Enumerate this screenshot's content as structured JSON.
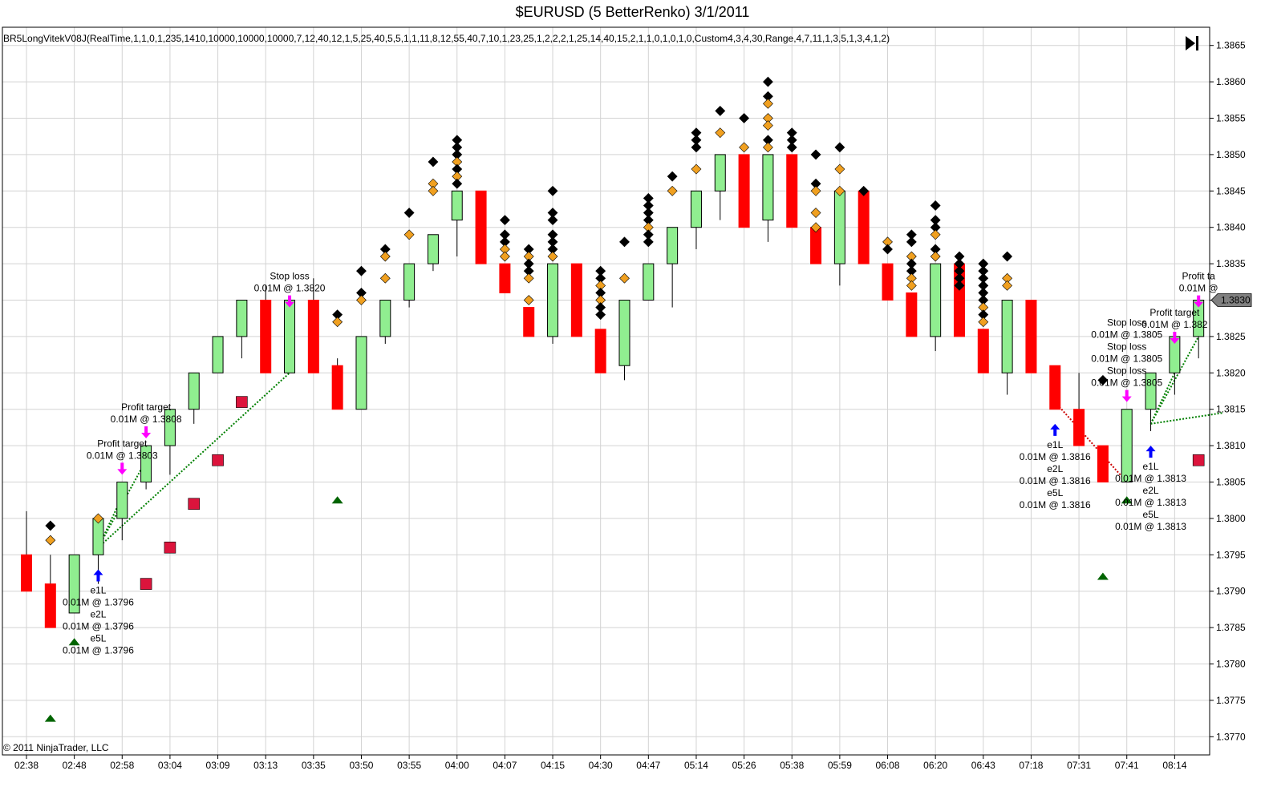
{
  "window": {
    "title": "$EURUSD (5 BetterRenko)  3/1/2011"
  },
  "indicator_label": "BR5LongVitekV08J(RealTime,1,1,0,1,235,1410,10000,10000,10000,7,12,40,12,1,5,25,40,5,5,1,1,11,8,12,55,40,7,10,1,23,25,1,2,2,2,1,25,14,40,15,2,1,1,0,1,0,1,0,Custom4,3,4,30,Range,4,7,11,1,3,5,1,3,4,1,2)",
  "copyright": "© 2011 NinjaTrader, LLC",
  "toolbar": {
    "goto_end_icon": "skip-to-end-icon"
  },
  "colors": {
    "up": "#90ee90",
    "down": "#ff0000",
    "diamond_black": "#000000",
    "diamond_orange": "#f0a020",
    "square": "#dc143c",
    "triangle": "#006400",
    "entry_arrow": "#0000ff",
    "exit_arrow": "#ff00ff",
    "trade_line": "#008000",
    "loss_line": "#cc0000",
    "price_marker": "#808080"
  },
  "chart_data": {
    "type": "candlestick",
    "title": "$EURUSD (5 BetterRenko)  3/1/2011",
    "y_range": [
      1.37675,
      1.38675
    ],
    "y_ticks": [
      "1.3770",
      "1.3775",
      "1.3780",
      "1.3785",
      "1.3790",
      "1.3795",
      "1.3800",
      "1.3805",
      "1.3810",
      "1.3815",
      "1.3820",
      "1.3825",
      "1.3830",
      "1.3835",
      "1.3840",
      "1.3845",
      "1.3850",
      "1.3855",
      "1.3860",
      "1.3865"
    ],
    "x_ticks": [
      "02:38",
      "02:48",
      "02:58",
      "03:04",
      "03:09",
      "03:13",
      "03:35",
      "03:50",
      "03:55",
      "04:00",
      "04:07",
      "04:15",
      "04:30",
      "04:47",
      "05:14",
      "05:26",
      "05:38",
      "05:59",
      "06:08",
      "06:20",
      "06:43",
      "07:18",
      "07:31",
      "07:41",
      "08:14"
    ],
    "bars": [
      {
        "o": 1.3795,
        "h": 1.3801,
        "l": 1.379,
        "c": 1.379
      },
      {
        "o": 1.3791,
        "h": 1.3795,
        "l": 1.3785,
        "c": 1.3785
      },
      {
        "o": 1.3787,
        "h": 1.3795,
        "l": 1.3787,
        "c": 1.3795
      },
      {
        "o": 1.3795,
        "h": 1.38,
        "l": 1.3791,
        "c": 1.38
      },
      {
        "o": 1.38,
        "h": 1.3805,
        "l": 1.3797,
        "c": 1.3805
      },
      {
        "o": 1.3805,
        "h": 1.381,
        "l": 1.3804,
        "c": 1.381
      },
      {
        "o": 1.381,
        "h": 1.3815,
        "l": 1.3806,
        "c": 1.3815
      },
      {
        "o": 1.3815,
        "h": 1.382,
        "l": 1.3813,
        "c": 1.382
      },
      {
        "o": 1.382,
        "h": 1.3825,
        "l": 1.382,
        "c": 1.3825
      },
      {
        "o": 1.3825,
        "h": 1.383,
        "l": 1.3822,
        "c": 1.383
      },
      {
        "o": 1.383,
        "h": 1.3832,
        "l": 1.382,
        "c": 1.382
      },
      {
        "o": 1.382,
        "h": 1.383,
        "l": 1.382,
        "c": 1.383
      },
      {
        "o": 1.383,
        "h": 1.3833,
        "l": 1.382,
        "c": 1.382
      },
      {
        "o": 1.3821,
        "h": 1.3822,
        "l": 1.3815,
        "c": 1.3815
      },
      {
        "o": 1.3815,
        "h": 1.3825,
        "l": 1.3815,
        "c": 1.3825
      },
      {
        "o": 1.3825,
        "h": 1.383,
        "l": 1.3824,
        "c": 1.383
      },
      {
        "o": 1.383,
        "h": 1.3835,
        "l": 1.3829,
        "c": 1.3835
      },
      {
        "o": 1.3835,
        "h": 1.3839,
        "l": 1.3834,
        "c": 1.3839
      },
      {
        "o": 1.3841,
        "h": 1.3845,
        "l": 1.3836,
        "c": 1.3845
      },
      {
        "o": 1.3845,
        "h": 1.3845,
        "l": 1.3835,
        "c": 1.3835
      },
      {
        "o": 1.3835,
        "h": 1.3835,
        "l": 1.3831,
        "c": 1.3831
      },
      {
        "o": 1.3829,
        "h": 1.3829,
        "l": 1.3825,
        "c": 1.3825
      },
      {
        "o": 1.3825,
        "h": 1.3835,
        "l": 1.3824,
        "c": 1.3835
      },
      {
        "o": 1.3835,
        "h": 1.3835,
        "l": 1.3825,
        "c": 1.3825
      },
      {
        "o": 1.3826,
        "h": 1.3826,
        "l": 1.382,
        "c": 1.382
      },
      {
        "o": 1.3821,
        "h": 1.383,
        "l": 1.3819,
        "c": 1.383
      },
      {
        "o": 1.383,
        "h": 1.3835,
        "l": 1.383,
        "c": 1.3835
      },
      {
        "o": 1.3835,
        "h": 1.384,
        "l": 1.3829,
        "c": 1.384
      },
      {
        "o": 1.384,
        "h": 1.3845,
        "l": 1.3837,
        "c": 1.3845
      },
      {
        "o": 1.3845,
        "h": 1.385,
        "l": 1.3841,
        "c": 1.385
      },
      {
        "o": 1.385,
        "h": 1.385,
        "l": 1.384,
        "c": 1.384
      },
      {
        "o": 1.3841,
        "h": 1.385,
        "l": 1.3838,
        "c": 1.385
      },
      {
        "o": 1.385,
        "h": 1.385,
        "l": 1.384,
        "c": 1.384
      },
      {
        "o": 1.384,
        "h": 1.384,
        "l": 1.3835,
        "c": 1.3835
      },
      {
        "o": 1.3835,
        "h": 1.3845,
        "l": 1.3832,
        "c": 1.3845
      },
      {
        "o": 1.3845,
        "h": 1.3845,
        "l": 1.3835,
        "c": 1.3835
      },
      {
        "o": 1.3835,
        "h": 1.3835,
        "l": 1.383,
        "c": 1.383
      },
      {
        "o": 1.3831,
        "h": 1.3831,
        "l": 1.3825,
        "c": 1.3825
      },
      {
        "o": 1.3825,
        "h": 1.3835,
        "l": 1.3823,
        "c": 1.3835
      },
      {
        "o": 1.3835,
        "h": 1.3835,
        "l": 1.3825,
        "c": 1.3825
      },
      {
        "o": 1.3826,
        "h": 1.3826,
        "l": 1.382,
        "c": 1.382
      },
      {
        "o": 1.382,
        "h": 1.383,
        "l": 1.3817,
        "c": 1.383
      },
      {
        "o": 1.383,
        "h": 1.383,
        "l": 1.382,
        "c": 1.382
      },
      {
        "o": 1.3821,
        "h": 1.3821,
        "l": 1.3815,
        "c": 1.3815
      },
      {
        "o": 1.3815,
        "h": 1.382,
        "l": 1.381,
        "c": 1.381
      },
      {
        "o": 1.381,
        "h": 1.381,
        "l": 1.3805,
        "c": 1.3805
      },
      {
        "o": 1.3805,
        "h": 1.3815,
        "l": 1.3805,
        "c": 1.3815
      },
      {
        "o": 1.3815,
        "h": 1.382,
        "l": 1.3812,
        "c": 1.382
      },
      {
        "o": 1.382,
        "h": 1.3825,
        "l": 1.3817,
        "c": 1.3825
      },
      {
        "o": 1.3825,
        "h": 1.383,
        "l": 1.3822,
        "c": 1.383
      }
    ],
    "diamonds": [
      {
        "i": 1,
        "y": 1.3799,
        "c": "k"
      },
      {
        "i": 1,
        "y": 1.3797,
        "c": "o"
      },
      {
        "i": 3,
        "y": 1.38,
        "c": "o"
      },
      {
        "i": 13,
        "y": 1.3828,
        "c": "k"
      },
      {
        "i": 13,
        "y": 1.3827,
        "c": "o"
      },
      {
        "i": 14,
        "y": 1.3834,
        "c": "k"
      },
      {
        "i": 14,
        "y": 1.3831,
        "c": "k"
      },
      {
        "i": 14,
        "y": 1.383,
        "c": "o"
      },
      {
        "i": 15,
        "y": 1.3837,
        "c": "k"
      },
      {
        "i": 15,
        "y": 1.3836,
        "c": "o"
      },
      {
        "i": 15,
        "y": 1.3833,
        "c": "o"
      },
      {
        "i": 16,
        "y": 1.3842,
        "c": "k"
      },
      {
        "i": 16,
        "y": 1.3839,
        "c": "o"
      },
      {
        "i": 17,
        "y": 1.3849,
        "c": "k"
      },
      {
        "i": 17,
        "y": 1.3846,
        "c": "o"
      },
      {
        "i": 17,
        "y": 1.3845,
        "c": "o"
      },
      {
        "i": 18,
        "y": 1.3852,
        "c": "k"
      },
      {
        "i": 18,
        "y": 1.3851,
        "c": "k"
      },
      {
        "i": 18,
        "y": 1.385,
        "c": "k"
      },
      {
        "i": 18,
        "y": 1.3849,
        "c": "o"
      },
      {
        "i": 18,
        "y": 1.3848,
        "c": "k"
      },
      {
        "i": 18,
        "y": 1.3847,
        "c": "o"
      },
      {
        "i": 18,
        "y": 1.3846,
        "c": "k"
      },
      {
        "i": 20,
        "y": 1.3841,
        "c": "k"
      },
      {
        "i": 20,
        "y": 1.3839,
        "c": "k"
      },
      {
        "i": 20,
        "y": 1.3838,
        "c": "k"
      },
      {
        "i": 20,
        "y": 1.3837,
        "c": "o"
      },
      {
        "i": 20,
        "y": 1.3836,
        "c": "o"
      },
      {
        "i": 21,
        "y": 1.3837,
        "c": "k"
      },
      {
        "i": 21,
        "y": 1.3836,
        "c": "o"
      },
      {
        "i": 21,
        "y": 1.3835,
        "c": "k"
      },
      {
        "i": 21,
        "y": 1.3834,
        "c": "k"
      },
      {
        "i": 21,
        "y": 1.3833,
        "c": "o"
      },
      {
        "i": 21,
        "y": 1.383,
        "c": "o"
      },
      {
        "i": 22,
        "y": 1.3845,
        "c": "k"
      },
      {
        "i": 22,
        "y": 1.3842,
        "c": "k"
      },
      {
        "i": 22,
        "y": 1.3841,
        "c": "k"
      },
      {
        "i": 22,
        "y": 1.3839,
        "c": "k"
      },
      {
        "i": 22,
        "y": 1.3838,
        "c": "k"
      },
      {
        "i": 22,
        "y": 1.3837,
        "c": "k"
      },
      {
        "i": 22,
        "y": 1.3836,
        "c": "o"
      },
      {
        "i": 24,
        "y": 1.3834,
        "c": "k"
      },
      {
        "i": 24,
        "y": 1.3833,
        "c": "k"
      },
      {
        "i": 24,
        "y": 1.3832,
        "c": "o"
      },
      {
        "i": 24,
        "y": 1.3831,
        "c": "k"
      },
      {
        "i": 24,
        "y": 1.383,
        "c": "o"
      },
      {
        "i": 24,
        "y": 1.3829,
        "c": "k"
      },
      {
        "i": 24,
        "y": 1.3828,
        "c": "k"
      },
      {
        "i": 25,
        "y": 1.3838,
        "c": "k"
      },
      {
        "i": 25,
        "y": 1.3833,
        "c": "o"
      },
      {
        "i": 26,
        "y": 1.3844,
        "c": "k"
      },
      {
        "i": 26,
        "y": 1.3843,
        "c": "k"
      },
      {
        "i": 26,
        "y": 1.3842,
        "c": "k"
      },
      {
        "i": 26,
        "y": 1.3841,
        "c": "k"
      },
      {
        "i": 26,
        "y": 1.384,
        "c": "o"
      },
      {
        "i": 26,
        "y": 1.3839,
        "c": "k"
      },
      {
        "i": 26,
        "y": 1.3838,
        "c": "k"
      },
      {
        "i": 27,
        "y": 1.3847,
        "c": "k"
      },
      {
        "i": 27,
        "y": 1.3845,
        "c": "o"
      },
      {
        "i": 28,
        "y": 1.3853,
        "c": "k"
      },
      {
        "i": 28,
        "y": 1.3852,
        "c": "k"
      },
      {
        "i": 28,
        "y": 1.3851,
        "c": "k"
      },
      {
        "i": 28,
        "y": 1.3848,
        "c": "o"
      },
      {
        "i": 29,
        "y": 1.3856,
        "c": "k"
      },
      {
        "i": 29,
        "y": 1.3853,
        "c": "o"
      },
      {
        "i": 30,
        "y": 1.3855,
        "c": "k"
      },
      {
        "i": 30,
        "y": 1.3851,
        "c": "o"
      },
      {
        "i": 31,
        "y": 1.386,
        "c": "k"
      },
      {
        "i": 31,
        "y": 1.3858,
        "c": "k"
      },
      {
        "i": 31,
        "y": 1.3857,
        "c": "o"
      },
      {
        "i": 31,
        "y": 1.3855,
        "c": "o"
      },
      {
        "i": 31,
        "y": 1.3854,
        "c": "o"
      },
      {
        "i": 31,
        "y": 1.3852,
        "c": "k"
      },
      {
        "i": 31,
        "y": 1.3851,
        "c": "o"
      },
      {
        "i": 32,
        "y": 1.3853,
        "c": "k"
      },
      {
        "i": 32,
        "y": 1.3852,
        "c": "k"
      },
      {
        "i": 32,
        "y": 1.3851,
        "c": "k"
      },
      {
        "i": 33,
        "y": 1.385,
        "c": "k"
      },
      {
        "i": 33,
        "y": 1.3846,
        "c": "k"
      },
      {
        "i": 33,
        "y": 1.3845,
        "c": "o"
      },
      {
        "i": 33,
        "y": 1.3842,
        "c": "o"
      },
      {
        "i": 33,
        "y": 1.384,
        "c": "o"
      },
      {
        "i": 34,
        "y": 1.3851,
        "c": "k"
      },
      {
        "i": 34,
        "y": 1.3848,
        "c": "o"
      },
      {
        "i": 34,
        "y": 1.3845,
        "c": "o"
      },
      {
        "i": 35,
        "y": 1.3845,
        "c": "k"
      },
      {
        "i": 36,
        "y": 1.3838,
        "c": "o"
      },
      {
        "i": 36,
        "y": 1.3837,
        "c": "k"
      },
      {
        "i": 37,
        "y": 1.3839,
        "c": "k"
      },
      {
        "i": 37,
        "y": 1.3838,
        "c": "k"
      },
      {
        "i": 37,
        "y": 1.3836,
        "c": "o"
      },
      {
        "i": 37,
        "y": 1.3835,
        "c": "k"
      },
      {
        "i": 37,
        "y": 1.3834,
        "c": "k"
      },
      {
        "i": 37,
        "y": 1.3833,
        "c": "o"
      },
      {
        "i": 37,
        "y": 1.3832,
        "c": "o"
      },
      {
        "i": 38,
        "y": 1.3843,
        "c": "k"
      },
      {
        "i": 38,
        "y": 1.3841,
        "c": "k"
      },
      {
        "i": 38,
        "y": 1.384,
        "c": "k"
      },
      {
        "i": 38,
        "y": 1.3839,
        "c": "o"
      },
      {
        "i": 38,
        "y": 1.3837,
        "c": "k"
      },
      {
        "i": 38,
        "y": 1.3836,
        "c": "o"
      },
      {
        "i": 39,
        "y": 1.3836,
        "c": "k"
      },
      {
        "i": 39,
        "y": 1.3835,
        "c": "k"
      },
      {
        "i": 39,
        "y": 1.3834,
        "c": "k"
      },
      {
        "i": 39,
        "y": 1.3833,
        "c": "k"
      },
      {
        "i": 39,
        "y": 1.3832,
        "c": "k"
      },
      {
        "i": 40,
        "y": 1.3835,
        "c": "k"
      },
      {
        "i": 40,
        "y": 1.3834,
        "c": "k"
      },
      {
        "i": 40,
        "y": 1.3833,
        "c": "k"
      },
      {
        "i": 40,
        "y": 1.3832,
        "c": "k"
      },
      {
        "i": 40,
        "y": 1.3831,
        "c": "k"
      },
      {
        "i": 40,
        "y": 1.383,
        "c": "k"
      },
      {
        "i": 40,
        "y": 1.3829,
        "c": "o"
      },
      {
        "i": 40,
        "y": 1.3828,
        "c": "k"
      },
      {
        "i": 40,
        "y": 1.3827,
        "c": "o"
      },
      {
        "i": 41,
        "y": 1.3836,
        "c": "k"
      },
      {
        "i": 41,
        "y": 1.3833,
        "c": "o"
      },
      {
        "i": 41,
        "y": 1.3832,
        "c": "o"
      },
      {
        "i": 45,
        "y": 1.3819,
        "c": "k"
      }
    ],
    "squares": [
      {
        "i": 5,
        "y": 1.3791
      },
      {
        "i": 6,
        "y": 1.3796
      },
      {
        "i": 7,
        "y": 1.3802
      },
      {
        "i": 8,
        "y": 1.3808
      },
      {
        "i": 9,
        "y": 1.3816
      },
      {
        "i": 49,
        "y": 1.3808
      }
    ],
    "triangles": [
      {
        "i": 1,
        "y": 1.37725
      },
      {
        "i": 2,
        "y": 1.3783
      },
      {
        "i": 13,
        "y": 1.38025
      },
      {
        "i": 45,
        "y": 1.3792
      },
      {
        "i": 46,
        "y": 1.38025
      }
    ],
    "trades": [
      {
        "type": "entry",
        "i": 3,
        "y": 1.3793,
        "labels": [
          "e1L",
          "0.01M @ 1.3796",
          "e2L",
          "0.01M @ 1.3796",
          "e5L",
          "0.01M @ 1.3796"
        ]
      },
      {
        "type": "exit",
        "i": 4,
        "y": 1.3806,
        "labels": [
          "Profit target",
          "0.01M @ 1.3803"
        ]
      },
      {
        "type": "exit",
        "i": 5,
        "y": 1.3811,
        "labels": [
          "Profit target",
          "0.01M @ 1.3808"
        ]
      },
      {
        "type": "exit",
        "i": 11,
        "y": 1.3829,
        "labels": [
          "Stop loss",
          "0.01M @ 1.3820"
        ]
      },
      {
        "type": "entry",
        "i": 43,
        "y": 1.3813,
        "labels": [
          "e1L",
          "0.01M @ 1.3816",
          "e2L",
          "0.01M @ 1.3816",
          "e5L",
          "0.01M @ 1.3816"
        ]
      },
      {
        "type": "entry",
        "i": 47,
        "y": 1.381,
        "labels": [
          "e1L",
          "0.01M @ 1.3813",
          "e2L",
          "0.01M @ 1.3813",
          "e5L",
          "0.01M @ 1.3813"
        ]
      },
      {
        "type": "exit",
        "i": 46,
        "y": 1.3816,
        "labels": [
          "Stop loss",
          "0.01M @ 1.3805",
          "Stop loss",
          "0.01M @ 1.3805",
          "Stop loss",
          "0.01M @ 1.3805"
        ]
      },
      {
        "type": "exit",
        "i": 48,
        "y": 1.3824,
        "labels": [
          "Profit target",
          "0.01M @ 1.382"
        ]
      },
      {
        "type": "exit",
        "i": 49,
        "y": 1.3829,
        "labels": [
          "Profit ta",
          "0.01M @"
        ]
      }
    ],
    "trade_lines": [
      {
        "from": [
          3,
          1.3796
        ],
        "to": [
          4,
          1.3803
        ],
        "color": "g"
      },
      {
        "from": [
          3,
          1.3796
        ],
        "to": [
          5,
          1.3808
        ],
        "color": "g"
      },
      {
        "from": [
          3,
          1.3796
        ],
        "to": [
          11,
          1.382
        ],
        "color": "g"
      },
      {
        "from": [
          43,
          1.3816
        ],
        "to": [
          46,
          1.3805
        ],
        "color": "r"
      },
      {
        "from": [
          47,
          1.3813
        ],
        "to": [
          48,
          1.382
        ],
        "color": "g"
      },
      {
        "from": [
          47,
          1.3813
        ],
        "to": [
          49,
          1.3825
        ],
        "color": "g"
      },
      {
        "from": [
          47,
          1.3813
        ],
        "to": [
          50,
          1.38145
        ],
        "color": "g"
      }
    ],
    "last_price": "1.3830",
    "last_price_value": 1.383
  }
}
